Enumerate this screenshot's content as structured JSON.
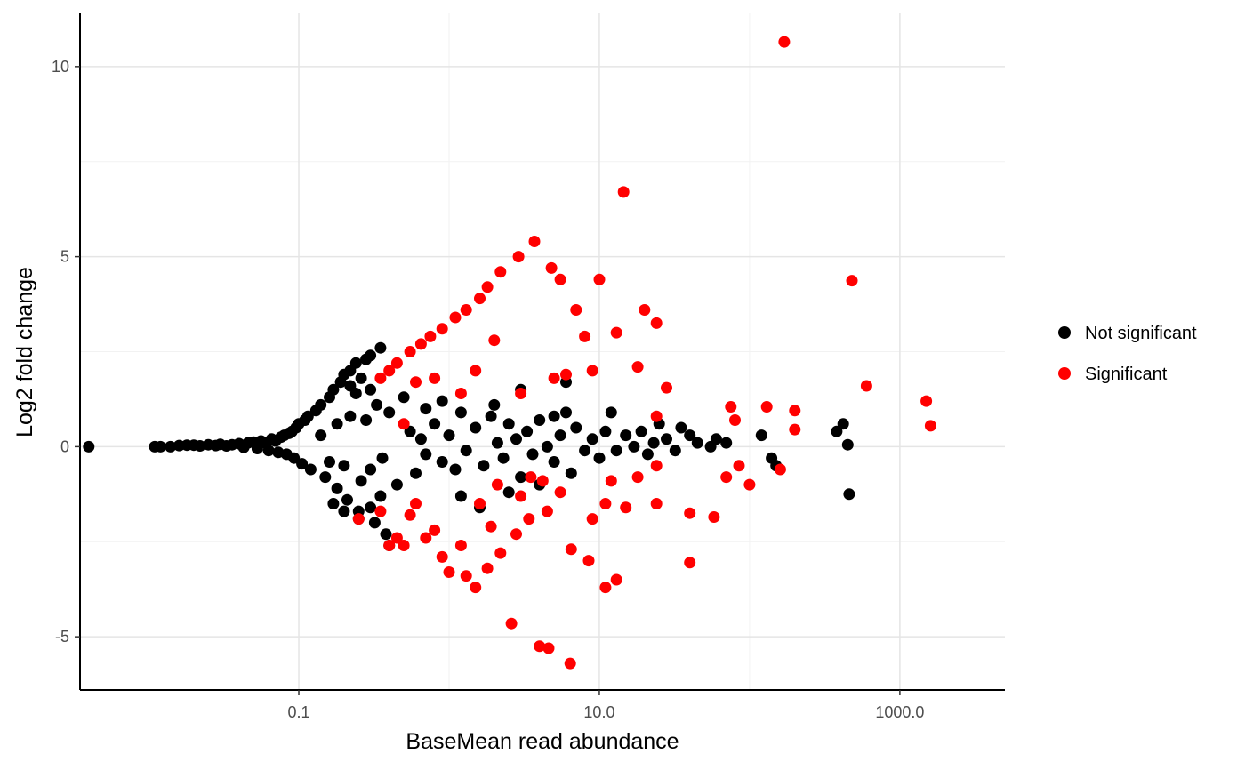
{
  "chart_data": {
    "type": "scatter",
    "title": "",
    "xlabel": "BaseMean read abundance",
    "ylabel": "Log2 fold change",
    "x_scale": "log10",
    "xlim": [
      0.0035,
      5000
    ],
    "ylim": [
      -6.4,
      11.4
    ],
    "x_ticks": [
      0.1,
      10,
      1000
    ],
    "x_tick_labels": [
      "0.1",
      "10.0",
      "1000.0"
    ],
    "y_ticks": [
      -5,
      0,
      5,
      10
    ],
    "y_tick_labels": [
      "-5",
      "0",
      "5",
      "10"
    ],
    "grid": true,
    "legend_position": "right",
    "colors": {
      "Not significant": "#000000",
      "Significant": "#ff0000"
    },
    "series": [
      {
        "name": "Not significant",
        "points": [
          [
            0.004,
            0
          ],
          [
            0.011,
            0
          ],
          [
            0.012,
            0
          ],
          [
            0.014,
            0
          ],
          [
            0.016,
            0.03
          ],
          [
            0.018,
            0.04
          ],
          [
            0.02,
            0.04
          ],
          [
            0.022,
            0.02
          ],
          [
            0.025,
            0.05
          ],
          [
            0.028,
            0.03
          ],
          [
            0.03,
            0.06
          ],
          [
            0.033,
            0.02
          ],
          [
            0.036,
            0.05
          ],
          [
            0.04,
            0.08
          ],
          [
            0.043,
            -0.02
          ],
          [
            0.046,
            0.1
          ],
          [
            0.05,
            0.12
          ],
          [
            0.053,
            -0.05
          ],
          [
            0.056,
            0.15
          ],
          [
            0.06,
            0.1
          ],
          [
            0.063,
            -0.1
          ],
          [
            0.066,
            0.2
          ],
          [
            0.07,
            0.15
          ],
          [
            0.073,
            -0.15
          ],
          [
            0.076,
            0.25
          ],
          [
            0.08,
            0.3
          ],
          [
            0.083,
            -0.2
          ],
          [
            0.086,
            0.35
          ],
          [
            0.09,
            0.4
          ],
          [
            0.093,
            -0.3
          ],
          [
            0.096,
            0.5
          ],
          [
            0.1,
            0.6
          ],
          [
            0.105,
            -0.45
          ],
          [
            0.11,
            0.7
          ],
          [
            0.115,
            0.8
          ],
          [
            0.12,
            -0.6
          ],
          [
            0.13,
            0.95
          ],
          [
            0.14,
            1.1
          ],
          [
            0.15,
            -0.8
          ],
          [
            0.16,
            1.3
          ],
          [
            0.17,
            1.5
          ],
          [
            0.18,
            -1.1
          ],
          [
            0.19,
            1.7
          ],
          [
            0.2,
            1.9
          ],
          [
            0.21,
            -1.4
          ],
          [
            0.22,
            2.0
          ],
          [
            0.24,
            2.2
          ],
          [
            0.25,
            -1.7
          ],
          [
            0.28,
            2.3
          ],
          [
            0.3,
            2.4
          ],
          [
            0.32,
            -2.0
          ],
          [
            0.35,
            2.6
          ],
          [
            0.38,
            -2.3
          ],
          [
            0.4,
            -2.6
          ],
          [
            0.14,
            0.3
          ],
          [
            0.16,
            -0.4
          ],
          [
            0.18,
            0.6
          ],
          [
            0.2,
            -0.5
          ],
          [
            0.22,
            0.8
          ],
          [
            0.24,
            1.4
          ],
          [
            0.26,
            -0.9
          ],
          [
            0.28,
            0.7
          ],
          [
            0.3,
            -0.6
          ],
          [
            0.33,
            1.1
          ],
          [
            0.36,
            -0.3
          ],
          [
            0.4,
            0.9
          ],
          [
            0.45,
            -1.0
          ],
          [
            0.5,
            1.3
          ],
          [
            0.55,
            0.4
          ],
          [
            0.6,
            -0.7
          ],
          [
            0.65,
            0.2
          ],
          [
            0.7,
            -0.2
          ],
          [
            0.8,
            0.6
          ],
          [
            0.9,
            -0.4
          ],
          [
            1.0,
            0.3
          ],
          [
            1.1,
            -0.6
          ],
          [
            1.2,
            0.9
          ],
          [
            1.3,
            -0.1
          ],
          [
            1.5,
            0.5
          ],
          [
            1.7,
            -0.5
          ],
          [
            1.9,
            0.8
          ],
          [
            2.1,
            0.1
          ],
          [
            2.3,
            -0.3
          ],
          [
            2.5,
            0.6
          ],
          [
            2.8,
            0.2
          ],
          [
            3.0,
            -0.8
          ],
          [
            3.3,
            0.4
          ],
          [
            3.6,
            -0.2
          ],
          [
            4.0,
            0.7
          ],
          [
            4.5,
            0.0
          ],
          [
            5.0,
            -0.4
          ],
          [
            5.5,
            0.3
          ],
          [
            6.0,
            0.9
          ],
          [
            6.5,
            -0.7
          ],
          [
            7.0,
            0.5
          ],
          [
            8.0,
            -0.1
          ],
          [
            9.0,
            0.2
          ],
          [
            10.0,
            -0.3
          ],
          [
            11.0,
            0.4
          ],
          [
            12.0,
            0.9
          ],
          [
            13.0,
            -0.1
          ],
          [
            15.0,
            0.3
          ],
          [
            17.0,
            0.0
          ],
          [
            19.0,
            0.4
          ],
          [
            21.0,
            -0.2
          ],
          [
            23.0,
            0.1
          ],
          [
            25.0,
            0.6
          ],
          [
            28.0,
            0.2
          ],
          [
            32.0,
            -0.1
          ],
          [
            35.0,
            0.5
          ],
          [
            40.0,
            0.3
          ],
          [
            45.0,
            0.1
          ],
          [
            55.0,
            0.0
          ],
          [
            60.0,
            0.2
          ],
          [
            70.0,
            0.1
          ],
          [
            120.0,
            0.3
          ],
          [
            140.0,
            -0.3
          ],
          [
            150.0,
            -0.5
          ],
          [
            380.0,
            0.4
          ],
          [
            420.0,
            0.6
          ],
          [
            450.0,
            0.05
          ],
          [
            460.0,
            -1.25
          ],
          [
            0.7,
            1.0
          ],
          [
            0.9,
            1.2
          ],
          [
            1.2,
            -1.3
          ],
          [
            1.6,
            -1.6
          ],
          [
            2.0,
            1.1
          ],
          [
            2.5,
            -1.2
          ],
          [
            3.0,
            1.5
          ],
          [
            4.0,
            -1.0
          ],
          [
            5.0,
            0.8
          ],
          [
            6.0,
            1.7
          ],
          [
            0.17,
            -1.5
          ],
          [
            0.2,
            -1.7
          ],
          [
            0.25,
            -1.9
          ],
          [
            0.3,
            -1.6
          ],
          [
            0.35,
            -1.3
          ],
          [
            0.22,
            1.6
          ],
          [
            0.26,
            1.8
          ],
          [
            0.3,
            1.5
          ]
        ]
      },
      {
        "name": "Significant",
        "points": [
          [
            170.0,
            10.65
          ],
          [
            14.5,
            6.7
          ],
          [
            3.7,
            5.4
          ],
          [
            2.9,
            5.0
          ],
          [
            2.2,
            4.6
          ],
          [
            1.8,
            4.2
          ],
          [
            1.6,
            3.9
          ],
          [
            1.3,
            3.6
          ],
          [
            1.1,
            3.4
          ],
          [
            0.9,
            3.1
          ],
          [
            0.75,
            2.9
          ],
          [
            0.65,
            2.7
          ],
          [
            0.55,
            2.5
          ],
          [
            0.45,
            2.2
          ],
          [
            0.4,
            2.0
          ],
          [
            0.35,
            1.8
          ],
          [
            4.8,
            4.7
          ],
          [
            5.5,
            4.4
          ],
          [
            7.0,
            3.6
          ],
          [
            10.0,
            4.4
          ],
          [
            20.0,
            3.6
          ],
          [
            24.0,
            3.25
          ],
          [
            480.0,
            4.37
          ],
          [
            600.0,
            1.6
          ],
          [
            1500.0,
            1.2
          ],
          [
            1600.0,
            0.55
          ],
          [
            200.0,
            0.95
          ],
          [
            130.0,
            1.05
          ],
          [
            75.0,
            1.05
          ],
          [
            80.0,
            0.7
          ],
          [
            13.0,
            3.0
          ],
          [
            18.0,
            2.1
          ],
          [
            28.0,
            1.55
          ],
          [
            8.0,
            2.9
          ],
          [
            9.0,
            2.0
          ],
          [
            6.0,
            1.9
          ],
          [
            5.0,
            1.8
          ],
          [
            3.0,
            1.4
          ],
          [
            2.0,
            2.8
          ],
          [
            1.5,
            2.0
          ],
          [
            1.2,
            1.4
          ],
          [
            0.8,
            1.8
          ],
          [
            0.6,
            1.7
          ],
          [
            0.5,
            0.6
          ],
          [
            24.0,
            0.8
          ],
          [
            200.0,
            0.45
          ],
          [
            160.0,
            -0.6
          ],
          [
            100.0,
            -1.0
          ],
          [
            85.0,
            -0.5
          ],
          [
            70.0,
            -0.8
          ],
          [
            58.0,
            -1.85
          ],
          [
            40.0,
            -1.75
          ],
          [
            40.0,
            -3.05
          ],
          [
            24.0,
            -0.5
          ],
          [
            24.0,
            -1.5
          ],
          [
            18.0,
            -0.8
          ],
          [
            15.0,
            -1.6
          ],
          [
            12.0,
            -0.9
          ],
          [
            11.0,
            -1.5
          ],
          [
            9.0,
            -1.9
          ],
          [
            8.5,
            -3.0
          ],
          [
            11.0,
            -3.7
          ],
          [
            13.0,
            -3.5
          ],
          [
            6.5,
            -2.7
          ],
          [
            5.5,
            -1.2
          ],
          [
            4.5,
            -1.7
          ],
          [
            3.5,
            -0.8
          ],
          [
            3.0,
            -1.3
          ],
          [
            2.8,
            -2.3
          ],
          [
            2.2,
            -2.8
          ],
          [
            1.8,
            -3.2
          ],
          [
            1.5,
            -3.7
          ],
          [
            1.3,
            -3.4
          ],
          [
            1.2,
            -2.6
          ],
          [
            1.0,
            -3.3
          ],
          [
            0.9,
            -2.9
          ],
          [
            0.8,
            -2.2
          ],
          [
            0.7,
            -2.4
          ],
          [
            0.6,
            -1.5
          ],
          [
            0.55,
            -1.8
          ],
          [
            0.5,
            -2.6
          ],
          [
            0.45,
            -2.4
          ],
          [
            0.4,
            -2.6
          ],
          [
            0.35,
            -1.7
          ],
          [
            0.25,
            -1.9
          ],
          [
            2.6,
            -4.65
          ],
          [
            4.0,
            -5.25
          ],
          [
            4.6,
            -5.3
          ],
          [
            6.4,
            -5.7
          ],
          [
            1.6,
            -1.5
          ],
          [
            2.1,
            -1.0
          ],
          [
            4.2,
            -0.9
          ],
          [
            3.4,
            -1.9
          ],
          [
            1.9,
            -2.1
          ]
        ]
      }
    ]
  }
}
